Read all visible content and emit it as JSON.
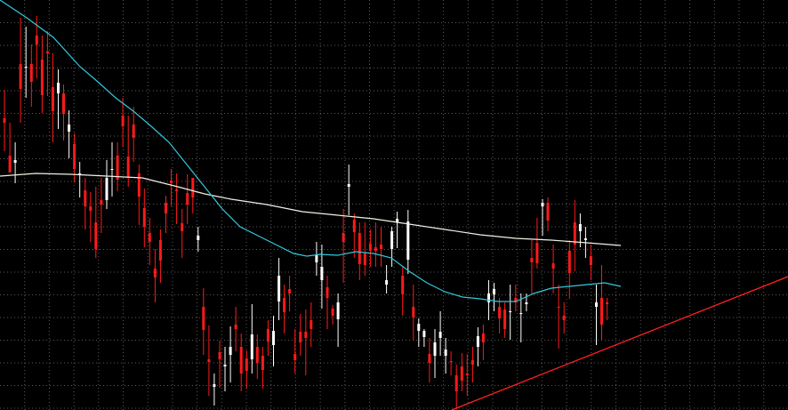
{
  "chart_data": {
    "type": "candlestick",
    "title": "",
    "xlabel": "",
    "ylabel": "",
    "grid": true,
    "ylim": [
      0,
      461
    ],
    "colors": {
      "background": "#000000",
      "grid": "#5a5a5a",
      "bull_candle": "#ff1a1a",
      "bear_candle": "#ffffff",
      "ma_fast": "#33c8dc",
      "ma_slow": "#f0f0e6",
      "trendline": "#ff2020"
    },
    "candles": [
      [
        138,
        133,
        170,
        101
      ],
      [
        194,
        175,
        193,
        138
      ],
      [
        180,
        183,
        206,
        160
      ],
      [
        100,
        72,
        138,
        20
      ],
      [
        75,
        75,
        110,
        30
      ],
      [
        92,
        72,
        120,
        50
      ],
      [
        50,
        40,
        88,
        18
      ],
      [
        107,
        67,
        127,
        40
      ],
      [
        60,
        58,
        108,
        35
      ],
      [
        125,
        98,
        160,
        60
      ],
      [
        93,
        105,
        145,
        78
      ],
      [
        128,
        105,
        158,
        95
      ],
      [
        140,
        148,
        178,
        124
      ],
      [
        190,
        162,
        205,
        150
      ],
      [
        195,
        196,
        222,
        182
      ],
      [
        232,
        214,
        258,
        200
      ],
      [
        237,
        232,
        272,
        216
      ],
      [
        280,
        250,
        290,
        210
      ],
      [
        230,
        225,
        262,
        200
      ],
      [
        200,
        225,
        235,
        180
      ],
      [
        190,
        191,
        221,
        160
      ],
      [
        202,
        175,
        215,
        160
      ],
      [
        142,
        130,
        165,
        110
      ],
      [
        200,
        176,
        210,
        130
      ],
      [
        155,
        140,
        182,
        120
      ],
      [
        221,
        195,
        253,
        185
      ],
      [
        255,
        234,
        278,
        212
      ],
      [
        272,
        262,
        298,
        245
      ],
      [
        312,
        302,
        340,
        280
      ],
      [
        293,
        270,
        318,
        258
      ],
      [
        240,
        228,
        262,
        220
      ],
      [
        206,
        203,
        232,
        190
      ],
      [
        215,
        213,
        252,
        195
      ],
      [
        260,
        251,
        290,
        235
      ],
      [
        230,
        217,
        252,
        196
      ],
      [
        222,
        200,
        240,
        205
      ],
      [
        265,
        270,
        283,
        255
      ],
      [
        371,
        345,
        399,
        324
      ],
      [
        407,
        404,
        445,
        366
      ],
      [
        432,
        435,
        456,
        420
      ],
      [
        404,
        396,
        436,
        383
      ],
      [
        410,
        412,
        440,
        390
      ],
      [
        390,
        399,
        430,
        367
      ],
      [
        370,
        365,
        395,
        345
      ],
      [
        420,
        390,
        440,
        375
      ],
      [
        417,
        403,
        437,
        394
      ],
      [
        376,
        404,
        420,
        342
      ],
      [
        408,
        390,
        426,
        376
      ],
      [
        416,
        400,
        437,
        390
      ],
      [
        384,
        370,
        400,
        360
      ],
      [
        372,
        388,
        412,
        355
      ],
      [
        310,
        339,
        360,
        290
      ],
      [
        351,
        335,
        375,
        320
      ],
      [
        330,
        325,
        350,
        310
      ],
      [
        405,
        398,
        420,
        370
      ],
      [
        385,
        373,
        400,
        353
      ],
      [
        380,
        373,
        422,
        348
      ],
      [
        370,
        360,
        390,
        340
      ],
      [
        287,
        295,
        310,
        272
      ],
      [
        300,
        315,
        347,
        275
      ],
      [
        335,
        323,
        370,
        310
      ],
      [
        355,
        347,
        365,
        343
      ],
      [
        340,
        359,
        390,
        330
      ],
      [
        272,
        262,
        318,
        235
      ],
      [
        207,
        210,
        242,
        185
      ],
      [
        261,
        247,
        290,
        240
      ],
      [
        297,
        262,
        315,
        250
      ],
      [
        298,
        285,
        310,
        250
      ],
      [
        282,
        274,
        300,
        258
      ],
      [
        282,
        278,
        300,
        250
      ],
      [
        280,
        275,
        300,
        255
      ],
      [
        315,
        320,
        330,
        298
      ],
      [
        260,
        280,
        300,
        255
      ],
      [
        246,
        250,
        279,
        238
      ],
      [
        331,
        310,
        355,
        300
      ],
      [
        249,
        292,
        308,
        236
      ],
      [
        357,
        345,
        383,
        320
      ],
      [
        364,
        372,
        390,
        358
      ],
      [
        372,
        379,
        390,
        370
      ],
      [
        408,
        398,
        430,
        380
      ],
      [
        385,
        400,
        425,
        370
      ],
      [
        373,
        380,
        400,
        350
      ],
      [
        393,
        400,
        420,
        380
      ],
      [
        407,
        406,
        422,
        395
      ],
      [
        440,
        422,
        460,
        410
      ],
      [
        428,
        412,
        440,
        397
      ],
      [
        422,
        420,
        445,
        398
      ],
      [
        410,
        405,
        430,
        390
      ],
      [
        378,
        390,
        412,
        368
      ],
      [
        385,
        375,
        405,
        365
      ],
      [
        330,
        340,
        360,
        315
      ],
      [
        325,
        331,
        350,
        318
      ],
      [
        358,
        345,
        375,
        335
      ],
      [
        370,
        348,
        380,
        340
      ],
      [
        350,
        350,
        382,
        320
      ],
      [
        340,
        335,
        350,
        320
      ],
      [
        352,
        352,
        385,
        330
      ],
      [
        340,
        342,
        350,
        330
      ],
      [
        295,
        290,
        330,
        270
      ],
      [
        296,
        273,
        302,
        245
      ],
      [
        228,
        232,
        265,
        224
      ],
      [
        248,
        228,
        260,
        222
      ],
      [
        302,
        296,
        330,
        275
      ],
      [
        346,
        345,
        392,
        320
      ],
      [
        360,
        355,
        375,
        340
      ],
      [
        307,
        282,
        336,
        270
      ],
      [
        275,
        250,
        305,
        225
      ],
      [
        252,
        260,
        278,
        240
      ],
      [
        268,
        270,
        290,
        255
      ],
      [
        298,
        288,
        315,
        275
      ],
      [
        340,
        345,
        388,
        320
      ],
      [
        365,
        335,
        382,
        298
      ],
      [
        342,
        340,
        360,
        335
      ]
    ],
    "ma_fast": [
      [
        0,
        0
      ],
      [
        30,
        20
      ],
      [
        60,
        42
      ],
      [
        90,
        75
      ],
      [
        110,
        92
      ],
      [
        130,
        110
      ],
      [
        150,
        125
      ],
      [
        170,
        142
      ],
      [
        190,
        160
      ],
      [
        210,
        185
      ],
      [
        230,
        210
      ],
      [
        250,
        235
      ],
      [
        270,
        255
      ],
      [
        290,
        265
      ],
      [
        310,
        275
      ],
      [
        330,
        285
      ],
      [
        345,
        288
      ],
      [
        360,
        286
      ],
      [
        380,
        287
      ],
      [
        400,
        283
      ],
      [
        420,
        285
      ],
      [
        440,
        290
      ],
      [
        460,
        305
      ],
      [
        480,
        318
      ],
      [
        500,
        328
      ],
      [
        520,
        334
      ],
      [
        540,
        336
      ],
      [
        560,
        339
      ],
      [
        580,
        339
      ],
      [
        600,
        330
      ],
      [
        620,
        324
      ],
      [
        640,
        322
      ],
      [
        660,
        320
      ],
      [
        680,
        318
      ],
      [
        698,
        322
      ]
    ],
    "ma_slow": [
      [
        0,
        198
      ],
      [
        40,
        195
      ],
      [
        80,
        196
      ],
      [
        120,
        198
      ],
      [
        160,
        200
      ],
      [
        200,
        210
      ],
      [
        230,
        218
      ],
      [
        260,
        224
      ],
      [
        300,
        230
      ],
      [
        340,
        238
      ],
      [
        380,
        242
      ],
      [
        420,
        246
      ],
      [
        460,
        252
      ],
      [
        500,
        258
      ],
      [
        540,
        264
      ],
      [
        580,
        268
      ],
      [
        620,
        270
      ],
      [
        660,
        273
      ],
      [
        698,
        276
      ]
    ],
    "trendline": [
      [
        508,
        461
      ],
      [
        886,
        311
      ]
    ]
  }
}
